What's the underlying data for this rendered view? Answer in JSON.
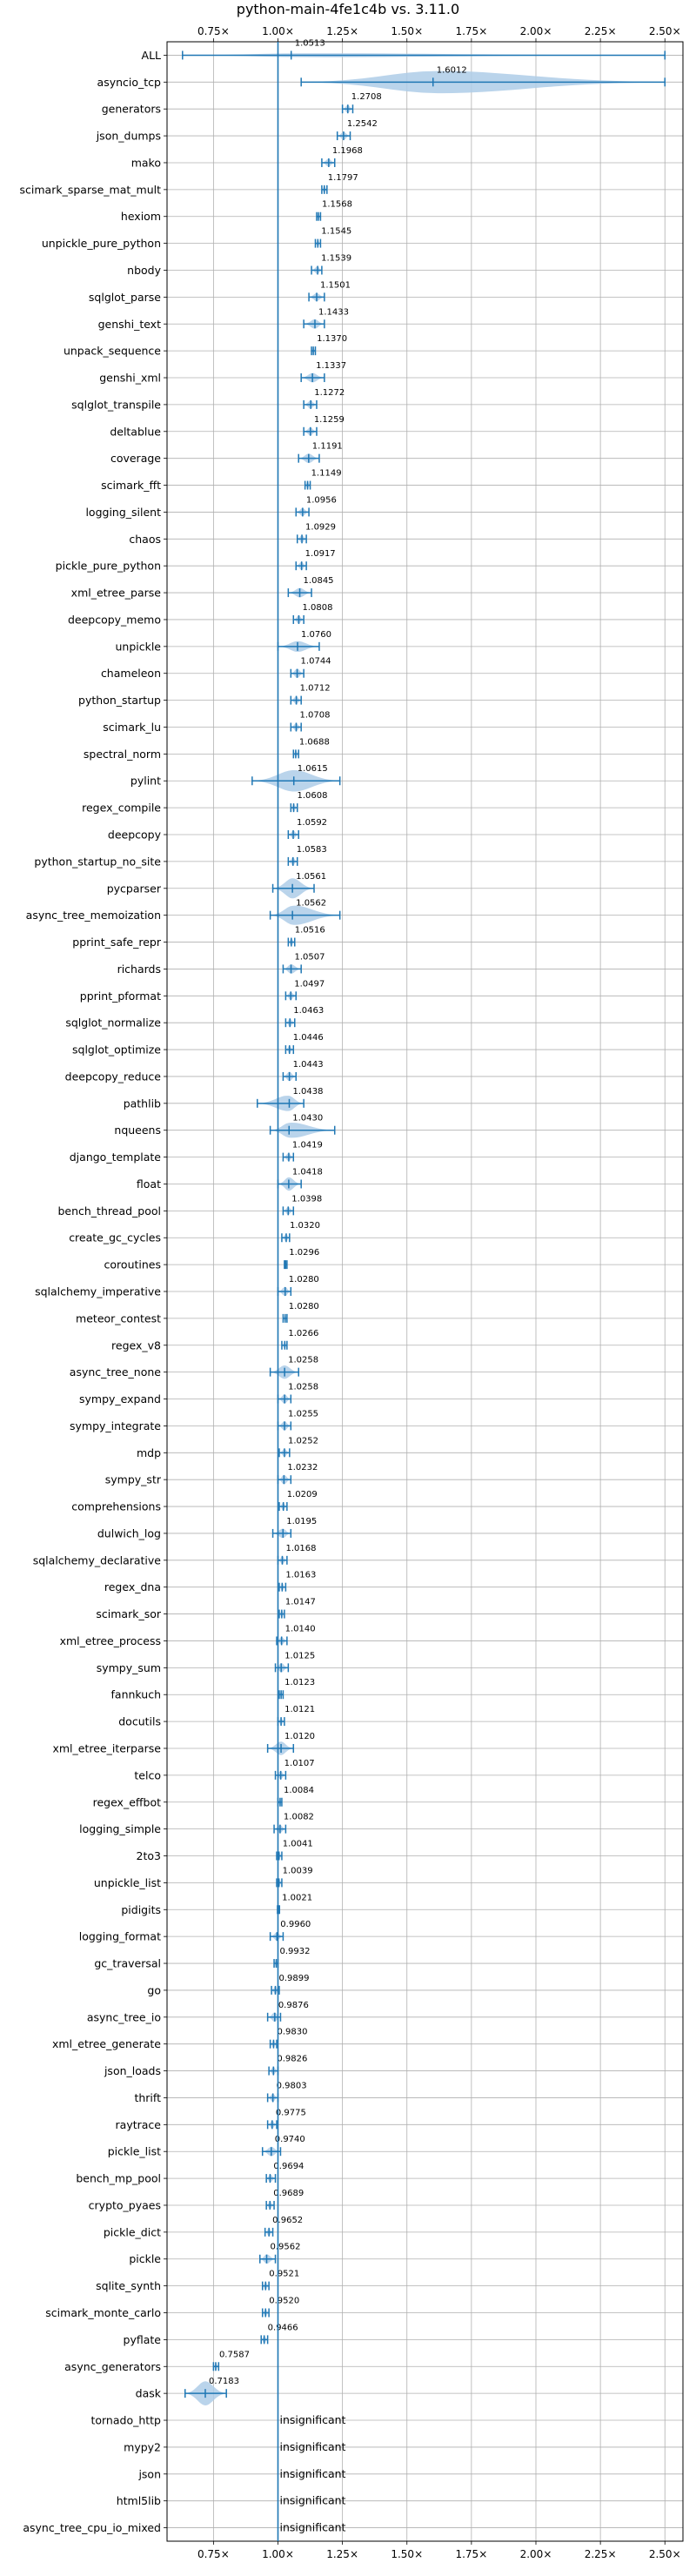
{
  "chart_data": {
    "type": "violin",
    "title": "python-main-4fe1c4b vs. 3.11.0",
    "xlim": [
      0.57,
      2.57
    ],
    "xticks": [
      0.75,
      1.0,
      1.25,
      1.5,
      1.75,
      2.0,
      2.25,
      2.5
    ],
    "xtick_labels": [
      "0.75×",
      "1.00×",
      "1.25×",
      "1.50×",
      "1.75×",
      "2.00×",
      "2.25×",
      "2.50×"
    ],
    "x_tick_position": "top and bottom",
    "grid": true,
    "reference_line": 1.0,
    "colors": {
      "violin": "#aecde8",
      "marker": "#1f77b4",
      "grid": "#b0b0b0"
    },
    "insignificant_label": "insignificant",
    "benchmarks": [
      {
        "name": "ALL",
        "value": 1.0513,
        "label": "1.0513",
        "min": 0.63,
        "max": 2.5,
        "width": 0.12
      },
      {
        "name": "asyncio_tcp",
        "value": 1.6012,
        "label": "1.6012",
        "min": 1.09,
        "max": 2.5,
        "width": 0.85
      },
      {
        "name": "generators",
        "value": 1.2708,
        "label": "1.2708",
        "min": 1.25,
        "max": 1.29,
        "width": 0.3
      },
      {
        "name": "json_dumps",
        "value": 1.2542,
        "label": "1.2542",
        "min": 1.23,
        "max": 1.28,
        "width": 0.3
      },
      {
        "name": "mako",
        "value": 1.1968,
        "label": "1.1968",
        "min": 1.17,
        "max": 1.22,
        "width": 0.3
      },
      {
        "name": "scimark_sparse_mat_mult",
        "value": 1.1797,
        "label": "1.1797",
        "min": 1.17,
        "max": 1.19,
        "width": 0.3
      },
      {
        "name": "hexiom",
        "value": 1.1568,
        "label": "1.1568",
        "min": 1.15,
        "max": 1.165,
        "width": 0.3
      },
      {
        "name": "unpickle_pure_python",
        "value": 1.1545,
        "label": "1.1545",
        "min": 1.145,
        "max": 1.165,
        "width": 0.3
      },
      {
        "name": "nbody",
        "value": 1.1539,
        "label": "1.1539",
        "min": 1.13,
        "max": 1.17,
        "width": 0.3
      },
      {
        "name": "sqlglot_parse",
        "value": 1.1501,
        "label": "1.1501",
        "min": 1.12,
        "max": 1.18,
        "width": 0.3
      },
      {
        "name": "genshi_text",
        "value": 1.1433,
        "label": "1.1433",
        "min": 1.1,
        "max": 1.18,
        "width": 0.35
      },
      {
        "name": "unpack_sequence",
        "value": 1.137,
        "label": "1.1370",
        "min": 1.13,
        "max": 1.145,
        "width": 0.3
      },
      {
        "name": "genshi_xml",
        "value": 1.1337,
        "label": "1.1337",
        "min": 1.09,
        "max": 1.18,
        "width": 0.35
      },
      {
        "name": "sqlglot_transpile",
        "value": 1.1272,
        "label": "1.1272",
        "min": 1.1,
        "max": 1.15,
        "width": 0.3
      },
      {
        "name": "deltablue",
        "value": 1.1259,
        "label": "1.1259",
        "min": 1.1,
        "max": 1.15,
        "width": 0.3
      },
      {
        "name": "coverage",
        "value": 1.1191,
        "label": "1.1191",
        "min": 1.08,
        "max": 1.16,
        "width": 0.35
      },
      {
        "name": "scimark_fft",
        "value": 1.1149,
        "label": "1.1149",
        "min": 1.105,
        "max": 1.125,
        "width": 0.3
      },
      {
        "name": "logging_silent",
        "value": 1.0956,
        "label": "1.0956",
        "min": 1.07,
        "max": 1.12,
        "width": 0.3
      },
      {
        "name": "chaos",
        "value": 1.0929,
        "label": "1.0929",
        "min": 1.075,
        "max": 1.11,
        "width": 0.3
      },
      {
        "name": "pickle_pure_python",
        "value": 1.0917,
        "label": "1.0917",
        "min": 1.07,
        "max": 1.11,
        "width": 0.3
      },
      {
        "name": "xml_etree_parse",
        "value": 1.0845,
        "label": "1.0845",
        "min": 1.04,
        "max": 1.13,
        "width": 0.35
      },
      {
        "name": "deepcopy_memo",
        "value": 1.0808,
        "label": "1.0808",
        "min": 1.06,
        "max": 1.1,
        "width": 0.3
      },
      {
        "name": "unpickle",
        "value": 1.076,
        "label": "1.0760",
        "min": 1.0,
        "max": 1.16,
        "width": 0.4
      },
      {
        "name": "chameleon",
        "value": 1.0744,
        "label": "1.0744",
        "min": 1.05,
        "max": 1.1,
        "width": 0.35
      },
      {
        "name": "python_startup",
        "value": 1.0712,
        "label": "1.0712",
        "min": 1.05,
        "max": 1.09,
        "width": 0.3
      },
      {
        "name": "scimark_lu",
        "value": 1.0708,
        "label": "1.0708",
        "min": 1.05,
        "max": 1.09,
        "width": 0.3
      },
      {
        "name": "spectral_norm",
        "value": 1.0688,
        "label": "1.0688",
        "min": 1.06,
        "max": 1.08,
        "width": 0.3
      },
      {
        "name": "pylint",
        "value": 1.0615,
        "label": "1.0615",
        "min": 0.9,
        "max": 1.24,
        "width": 0.8
      },
      {
        "name": "regex_compile",
        "value": 1.0608,
        "label": "1.0608",
        "min": 1.05,
        "max": 1.075,
        "width": 0.3
      },
      {
        "name": "deepcopy",
        "value": 1.0592,
        "label": "1.0592",
        "min": 1.04,
        "max": 1.08,
        "width": 0.3
      },
      {
        "name": "python_startup_no_site",
        "value": 1.0583,
        "label": "1.0583",
        "min": 1.04,
        "max": 1.075,
        "width": 0.3
      },
      {
        "name": "pycparser",
        "value": 1.0561,
        "label": "1.0561",
        "min": 0.98,
        "max": 1.14,
        "width": 0.75
      },
      {
        "name": "async_tree_memoization",
        "value": 1.0562,
        "label": "1.0562",
        "min": 0.97,
        "max": 1.24,
        "width": 0.75
      },
      {
        "name": "pprint_safe_repr",
        "value": 1.0516,
        "label": "1.0516",
        "min": 1.04,
        "max": 1.065,
        "width": 0.3
      },
      {
        "name": "richards",
        "value": 1.0507,
        "label": "1.0507",
        "min": 1.02,
        "max": 1.09,
        "width": 0.35
      },
      {
        "name": "pprint_pformat",
        "value": 1.0497,
        "label": "1.0497",
        "min": 1.03,
        "max": 1.07,
        "width": 0.3
      },
      {
        "name": "sqlglot_normalize",
        "value": 1.0463,
        "label": "1.0463",
        "min": 1.03,
        "max": 1.065,
        "width": 0.3
      },
      {
        "name": "sqlglot_optimize",
        "value": 1.0446,
        "label": "1.0446",
        "min": 1.03,
        "max": 1.06,
        "width": 0.3
      },
      {
        "name": "deepcopy_reduce",
        "value": 1.0443,
        "label": "1.0443",
        "min": 1.02,
        "max": 1.07,
        "width": 0.35
      },
      {
        "name": "pathlib",
        "value": 1.0438,
        "label": "1.0438",
        "min": 0.92,
        "max": 1.1,
        "width": 0.6
      },
      {
        "name": "nqueens",
        "value": 1.043,
        "label": "1.0430",
        "min": 0.97,
        "max": 1.22,
        "width": 0.6
      },
      {
        "name": "django_template",
        "value": 1.0419,
        "label": "1.0419",
        "min": 1.02,
        "max": 1.06,
        "width": 0.3
      },
      {
        "name": "float",
        "value": 1.0418,
        "label": "1.0418",
        "min": 1.0,
        "max": 1.09,
        "width": 0.5
      },
      {
        "name": "bench_thread_pool",
        "value": 1.0398,
        "label": "1.0398",
        "min": 1.02,
        "max": 1.06,
        "width": 0.3
      },
      {
        "name": "create_gc_cycles",
        "value": 1.032,
        "label": "1.0320",
        "min": 1.015,
        "max": 1.045,
        "width": 0.3
      },
      {
        "name": "coroutines",
        "value": 1.0296,
        "label": "1.0296",
        "min": 1.025,
        "max": 1.035,
        "width": 0.3
      },
      {
        "name": "sqlalchemy_imperative",
        "value": 1.028,
        "label": "1.0280",
        "min": 1.0,
        "max": 1.05,
        "width": 0.35
      },
      {
        "name": "meteor_contest",
        "value": 1.028,
        "label": "1.0280",
        "min": 1.02,
        "max": 1.035,
        "width": 0.3
      },
      {
        "name": "regex_v8",
        "value": 1.0266,
        "label": "1.0266",
        "min": 1.015,
        "max": 1.035,
        "width": 0.3
      },
      {
        "name": "async_tree_none",
        "value": 1.0258,
        "label": "1.0258",
        "min": 0.97,
        "max": 1.08,
        "width": 0.5
      },
      {
        "name": "sympy_expand",
        "value": 1.0258,
        "label": "1.0258",
        "min": 1.0,
        "max": 1.05,
        "width": 0.35
      },
      {
        "name": "sympy_integrate",
        "value": 1.0255,
        "label": "1.0255",
        "min": 1.0,
        "max": 1.05,
        "width": 0.35
      },
      {
        "name": "mdp",
        "value": 1.0252,
        "label": "1.0252",
        "min": 1.005,
        "max": 1.045,
        "width": 0.3
      },
      {
        "name": "sympy_str",
        "value": 1.0232,
        "label": "1.0232",
        "min": 1.0,
        "max": 1.05,
        "width": 0.35
      },
      {
        "name": "comprehensions",
        "value": 1.0209,
        "label": "1.0209",
        "min": 1.005,
        "max": 1.035,
        "width": 0.3
      },
      {
        "name": "dulwich_log",
        "value": 1.0195,
        "label": "1.0195",
        "min": 0.98,
        "max": 1.05,
        "width": 0.35
      },
      {
        "name": "sqlalchemy_declarative",
        "value": 1.0168,
        "label": "1.0168",
        "min": 1.0,
        "max": 1.035,
        "width": 0.3
      },
      {
        "name": "regex_dna",
        "value": 1.0163,
        "label": "1.0163",
        "min": 1.005,
        "max": 1.03,
        "width": 0.3
      },
      {
        "name": "scimark_sor",
        "value": 1.0147,
        "label": "1.0147",
        "min": 1.005,
        "max": 1.025,
        "width": 0.3
      },
      {
        "name": "xml_etree_process",
        "value": 1.014,
        "label": "1.0140",
        "min": 0.995,
        "max": 1.035,
        "width": 0.3
      },
      {
        "name": "sympy_sum",
        "value": 1.0125,
        "label": "1.0125",
        "min": 0.99,
        "max": 1.04,
        "width": 0.35
      },
      {
        "name": "fannkuch",
        "value": 1.0123,
        "label": "1.0123",
        "min": 1.005,
        "max": 1.02,
        "width": 0.3
      },
      {
        "name": "docutils",
        "value": 1.0121,
        "label": "1.0121",
        "min": 1.0,
        "max": 1.025,
        "width": 0.3
      },
      {
        "name": "xml_etree_iterparse",
        "value": 1.012,
        "label": "1.0120",
        "min": 0.96,
        "max": 1.06,
        "width": 0.5
      },
      {
        "name": "telco",
        "value": 1.0107,
        "label": "1.0107",
        "min": 0.99,
        "max": 1.03,
        "width": 0.3
      },
      {
        "name": "regex_effbot",
        "value": 1.0084,
        "label": "1.0084",
        "min": 1.0,
        "max": 1.015,
        "width": 0.3
      },
      {
        "name": "logging_simple",
        "value": 1.0082,
        "label": "1.0082",
        "min": 0.985,
        "max": 1.03,
        "width": 0.3
      },
      {
        "name": "2to3",
        "value": 1.0041,
        "label": "1.0041",
        "min": 0.995,
        "max": 1.015,
        "width": 0.3
      },
      {
        "name": "unpickle_list",
        "value": 1.0039,
        "label": "1.0039",
        "min": 0.995,
        "max": 1.015,
        "width": 0.3
      },
      {
        "name": "pidigits",
        "value": 1.0021,
        "label": "1.0021",
        "min": 0.998,
        "max": 1.006,
        "width": 0.3
      },
      {
        "name": "logging_format",
        "value": 0.996,
        "label": "0.9960",
        "min": 0.97,
        "max": 1.02,
        "width": 0.3
      },
      {
        "name": "gc_traversal",
        "value": 0.9932,
        "label": "0.9932",
        "min": 0.985,
        "max": 1.0,
        "width": 0.3
      },
      {
        "name": "go",
        "value": 0.9899,
        "label": "0.9899",
        "min": 0.975,
        "max": 1.005,
        "width": 0.3
      },
      {
        "name": "async_tree_io",
        "value": 0.9876,
        "label": "0.9876",
        "min": 0.96,
        "max": 1.01,
        "width": 0.35
      },
      {
        "name": "xml_etree_generate",
        "value": 0.983,
        "label": "0.9830",
        "min": 0.97,
        "max": 0.995,
        "width": 0.3
      },
      {
        "name": "json_loads",
        "value": 0.9826,
        "label": "0.9826",
        "min": 0.965,
        "max": 1.0,
        "width": 0.3
      },
      {
        "name": "thrift",
        "value": 0.9803,
        "label": "0.9803",
        "min": 0.96,
        "max": 1.0,
        "width": 0.3
      },
      {
        "name": "raytrace",
        "value": 0.9775,
        "label": "0.9775",
        "min": 0.96,
        "max": 0.995,
        "width": 0.3
      },
      {
        "name": "pickle_list",
        "value": 0.974,
        "label": "0.9740",
        "min": 0.94,
        "max": 1.01,
        "width": 0.35
      },
      {
        "name": "bench_mp_pool",
        "value": 0.9694,
        "label": "0.9694",
        "min": 0.955,
        "max": 0.99,
        "width": 0.3
      },
      {
        "name": "crypto_pyaes",
        "value": 0.9689,
        "label": "0.9689",
        "min": 0.955,
        "max": 0.985,
        "width": 0.3
      },
      {
        "name": "pickle_dict",
        "value": 0.9652,
        "label": "0.9652",
        "min": 0.95,
        "max": 0.98,
        "width": 0.3
      },
      {
        "name": "pickle",
        "value": 0.9562,
        "label": "0.9562",
        "min": 0.93,
        "max": 0.99,
        "width": 0.35
      },
      {
        "name": "sqlite_synth",
        "value": 0.9521,
        "label": "0.9521",
        "min": 0.94,
        "max": 0.965,
        "width": 0.3
      },
      {
        "name": "scimark_monte_carlo",
        "value": 0.952,
        "label": "0.9520",
        "min": 0.94,
        "max": 0.965,
        "width": 0.3
      },
      {
        "name": "pyflate",
        "value": 0.9466,
        "label": "0.9466",
        "min": 0.935,
        "max": 0.96,
        "width": 0.3
      },
      {
        "name": "async_generators",
        "value": 0.7587,
        "label": "0.7587",
        "min": 0.75,
        "max": 0.77,
        "width": 0.3
      },
      {
        "name": "dask",
        "value": 0.7183,
        "label": "0.7183",
        "min": 0.64,
        "max": 0.8,
        "width": 0.9
      },
      {
        "name": "tornado_http",
        "insignificant": true
      },
      {
        "name": "mypy2",
        "insignificant": true
      },
      {
        "name": "json",
        "insignificant": true
      },
      {
        "name": "html5lib",
        "insignificant": true
      },
      {
        "name": "async_tree_cpu_io_mixed",
        "insignificant": true
      }
    ]
  }
}
